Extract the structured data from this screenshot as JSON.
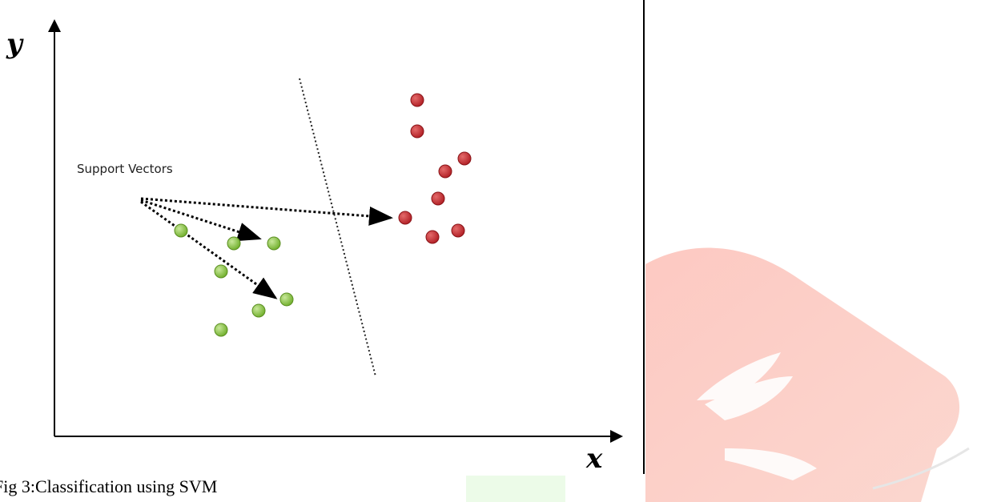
{
  "figure": {
    "caption": "Fig 3:Classification using SVM",
    "x_axis_label": "x",
    "y_axis_label": "y",
    "annotation": "Support Vectors"
  },
  "colors": {
    "class_a": "#8cc63f",
    "class_b": "#c0272d",
    "watermark": "#f04a3a"
  },
  "icons": [
    "book-logo-icon"
  ]
}
